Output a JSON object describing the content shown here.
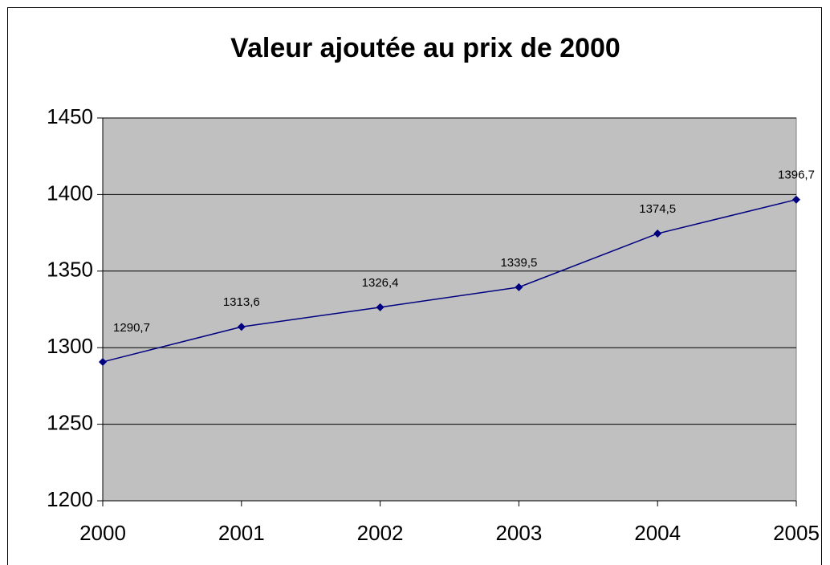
{
  "chart_data": {
    "type": "line",
    "title": "Valeur ajoutée au prix de 2000",
    "categories": [
      "2000",
      "2001",
      "2002",
      "2003",
      "2004",
      "2005"
    ],
    "values": [
      1290.7,
      1313.6,
      1326.4,
      1339.5,
      1374.5,
      1396.7
    ],
    "value_labels": [
      "1290,7",
      "1313,6",
      "1326,4",
      "1339,5",
      "1374,5",
      "1396,7"
    ],
    "color": "#000080",
    "ylim": [
      1200,
      1450
    ],
    "yticks": [
      1200,
      1250,
      1300,
      1350,
      1400,
      1450
    ],
    "grid": true
  }
}
